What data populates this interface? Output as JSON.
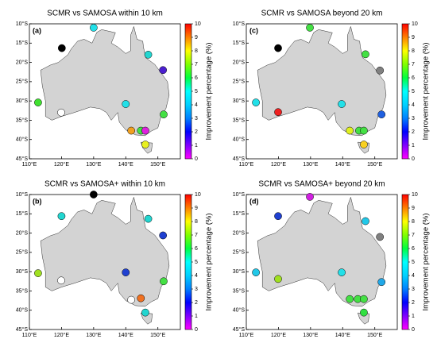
{
  "chart_data": [
    {
      "type": "scatter",
      "title": "SCMR vs SAMOSA within 10 km",
      "panel_label": "(a)",
      "x": [
        130,
        120.1,
        147,
        151.6,
        112.7,
        140,
        119.9,
        151.8,
        141.7,
        144.7,
        146.1,
        146.1
      ],
      "y": [
        -11,
        -16.3,
        -18,
        -22,
        -30.4,
        -30.8,
        -33,
        -33.5,
        -37.7,
        -37.7,
        -37.7,
        -41.3
      ],
      "values": [
        5,
        null,
        5,
        1,
        7,
        5,
        null,
        6.5,
        8.5,
        7,
        0.5,
        7.5
      ],
      "colors": [
        "#22e0e8",
        "#000000",
        "#22d6d0",
        "#4b1fd0",
        "#40e030",
        "#22e0e8",
        "#ffffff",
        "#44e044",
        "#f0a020",
        "#44e044",
        "#e020e0",
        "#e8f020"
      ],
      "xlim": [
        110,
        157
      ],
      "ylim": [
        -45,
        -10
      ],
      "xticks": [
        {
          "value": 110,
          "label": "110°E"
        },
        {
          "value": 120,
          "label": "120°E"
        },
        {
          "value": 130,
          "label": "130°E"
        },
        {
          "value": 140,
          "label": "140°E"
        },
        {
          "value": 150,
          "label": "150°E"
        }
      ],
      "yticks": [
        {
          "value": -10,
          "label": "10°S"
        },
        {
          "value": -15,
          "label": "15°S"
        },
        {
          "value": -20,
          "label": "20°S"
        },
        {
          "value": -25,
          "label": "25°S"
        },
        {
          "value": -30,
          "label": "30°S"
        },
        {
          "value": -35,
          "label": "35°S"
        },
        {
          "value": -40,
          "label": "40°S"
        },
        {
          "value": -45,
          "label": "45°S"
        }
      ],
      "colorbar": {
        "label": "Improvement percentage (%)",
        "lim": [
          0,
          10
        ],
        "ticks": [
          0,
          1,
          2,
          3,
          4,
          5,
          6,
          7,
          8,
          9,
          10
        ],
        "colors": [
          "#ff00ff",
          "#8000ff",
          "#0000ff",
          "#0080ff",
          "#00d0ff",
          "#00ffff",
          "#00ff40",
          "#80ff00",
          "#ffff00",
          "#ff8000",
          "#ff0000"
        ]
      }
    },
    {
      "type": "scatter",
      "title": "SCMR vs SAMOSA beyond 20 km",
      "panel_label": "(c)",
      "x": [
        129.8,
        119.9,
        147.1,
        151.6,
        113,
        139.7,
        119.9,
        152.1,
        142.2,
        145.1,
        146.6,
        146.6
      ],
      "y": [
        -11,
        -16.3,
        -17.9,
        -22.1,
        -30.4,
        -30.8,
        -32.9,
        -33.5,
        -37.7,
        -37.7,
        -37.7,
        -41.3
      ],
      "values": [
        6.5,
        null,
        6.5,
        null,
        5,
        5,
        10,
        2,
        7.5,
        6.5,
        6.5,
        8
      ],
      "colors": [
        "#44e044",
        "#000000",
        "#44e044",
        "#808080",
        "#22e0e8",
        "#22e0e8",
        "#ee2020",
        "#1f60e0",
        "#e0f020",
        "#44e044",
        "#44e044",
        "#f8d020"
      ],
      "xlim": [
        110,
        157
      ],
      "ylim": [
        -45,
        -10
      ],
      "xticks": [
        {
          "value": 110,
          "label": "110°E"
        },
        {
          "value": 120,
          "label": "120°E"
        },
        {
          "value": 130,
          "label": "130°E"
        },
        {
          "value": 140,
          "label": "140°E"
        },
        {
          "value": 150,
          "label": "150°E"
        }
      ],
      "yticks": [
        {
          "value": -10,
          "label": "10°S"
        },
        {
          "value": -15,
          "label": "15°S"
        },
        {
          "value": -20,
          "label": "20°S"
        },
        {
          "value": -25,
          "label": "25°S"
        },
        {
          "value": -30,
          "label": "30°S"
        },
        {
          "value": -35,
          "label": "35°S"
        },
        {
          "value": -40,
          "label": "40°S"
        },
        {
          "value": -45,
          "label": "45°S"
        }
      ],
      "colorbar": {
        "label": "Improvement percentage (%)",
        "lim": [
          0,
          10
        ],
        "ticks": [
          0,
          1,
          2,
          3,
          4,
          5,
          6,
          7,
          8,
          9,
          10
        ],
        "colors": [
          "#ff00ff",
          "#8000ff",
          "#0000ff",
          "#0080ff",
          "#00d0ff",
          "#00ffff",
          "#00ff40",
          "#80ff00",
          "#ffff00",
          "#ff8000",
          "#ff0000"
        ]
      }
    },
    {
      "type": "scatter",
      "title": "SCMR vs SAMOSA+ within 10 km",
      "panel_label": "(b)",
      "x": [
        130,
        120,
        147,
        151.6,
        112.7,
        140,
        119.9,
        151.8,
        141.7,
        144.7,
        146.1
      ],
      "y": [
        -10,
        -15.6,
        -16.3,
        -20.6,
        -30.4,
        -30.2,
        -32.3,
        -32.5,
        -37.3,
        -36.9,
        -40.6
      ],
      "values": [
        null,
        5,
        5,
        2,
        7.5,
        2,
        null,
        6.5,
        null,
        8.5,
        5
      ],
      "colors": [
        "#000000",
        "#22d6d0",
        "#22d6d0",
        "#1f40d0",
        "#a0e020",
        "#1f40d0",
        "#ffffff",
        "#44e044",
        "#ffffff",
        "#f07020",
        "#22d6d0"
      ],
      "xlim": [
        110,
        157
      ],
      "ylim": [
        -45,
        -10
      ],
      "xticks": [
        {
          "value": 110,
          "label": "110°E"
        },
        {
          "value": 120,
          "label": "120°E"
        },
        {
          "value": 130,
          "label": "130°E"
        },
        {
          "value": 140,
          "label": "140°E"
        },
        {
          "value": 150,
          "label": "150°E"
        }
      ],
      "yticks": [
        {
          "value": -10,
          "label": "10°S"
        },
        {
          "value": -15,
          "label": "15°S"
        },
        {
          "value": -20,
          "label": "20°S"
        },
        {
          "value": -25,
          "label": "25°S"
        },
        {
          "value": -30,
          "label": "30°S"
        },
        {
          "value": -35,
          "label": "35°S"
        },
        {
          "value": -40,
          "label": "40°S"
        },
        {
          "value": -45,
          "label": "45°S"
        }
      ],
      "colorbar": {
        "label": "Improvement percentage (%)",
        "lim": [
          0,
          10
        ],
        "ticks": [
          0,
          1,
          2,
          3,
          4,
          5,
          6,
          7,
          8,
          9,
          10
        ],
        "colors": [
          "#ff00ff",
          "#8000ff",
          "#0000ff",
          "#0080ff",
          "#00d0ff",
          "#00ffff",
          "#00ff40",
          "#80ff00",
          "#ffff00",
          "#ff8000",
          "#ff0000"
        ]
      }
    },
    {
      "type": "scatter",
      "title": "SCMR vs SAMOSA+ beyond 20 km",
      "panel_label": "(d)",
      "x": [
        129.8,
        119.9,
        147.1,
        151.6,
        113,
        139.7,
        119.9,
        152.1,
        142.2,
        144.7,
        146.6,
        146.6
      ],
      "y": [
        -10.6,
        -15.6,
        -16.9,
        -21,
        -30.2,
        -30.2,
        -31.9,
        -32.7,
        -37.1,
        -37.1,
        -37.1,
        -40.6
      ],
      "values": [
        0.5,
        2,
        4.5,
        null,
        4.5,
        5,
        7.5,
        4,
        6.5,
        6.5,
        6.5,
        6
      ],
      "colors": [
        "#d020e0",
        "#1f40d0",
        "#22c8e8",
        "#808080",
        "#22c8e8",
        "#22e0e8",
        "#a0e020",
        "#20a8e8",
        "#44e044",
        "#44e044",
        "#44e044",
        "#30e040"
      ],
      "xlim": [
        110,
        157
      ],
      "ylim": [
        -45,
        -10
      ],
      "xticks": [
        {
          "value": 110,
          "label": "110°E"
        },
        {
          "value": 120,
          "label": "120°E"
        },
        {
          "value": 130,
          "label": "130°E"
        },
        {
          "value": 140,
          "label": "140°E"
        },
        {
          "value": 150,
          "label": "150°E"
        }
      ],
      "yticks": [
        {
          "value": -10,
          "label": "10°S"
        },
        {
          "value": -15,
          "label": "15°S"
        },
        {
          "value": -20,
          "label": "20°S"
        },
        {
          "value": -25,
          "label": "25°S"
        },
        {
          "value": -30,
          "label": "30°S"
        },
        {
          "value": -35,
          "label": "35°S"
        },
        {
          "value": -40,
          "label": "40°S"
        },
        {
          "value": -45,
          "label": "45°S"
        }
      ],
      "colorbar": {
        "label": "Improvement percentage (%)",
        "lim": [
          0,
          10
        ],
        "ticks": [
          0,
          1,
          2,
          3,
          4,
          5,
          6,
          7,
          8,
          9,
          10
        ],
        "colors": [
          "#ff00ff",
          "#8000ff",
          "#0000ff",
          "#0080ff",
          "#00d0ff",
          "#00ffff",
          "#00ff40",
          "#80ff00",
          "#ffff00",
          "#ff8000",
          "#ff0000"
        ]
      }
    }
  ]
}
